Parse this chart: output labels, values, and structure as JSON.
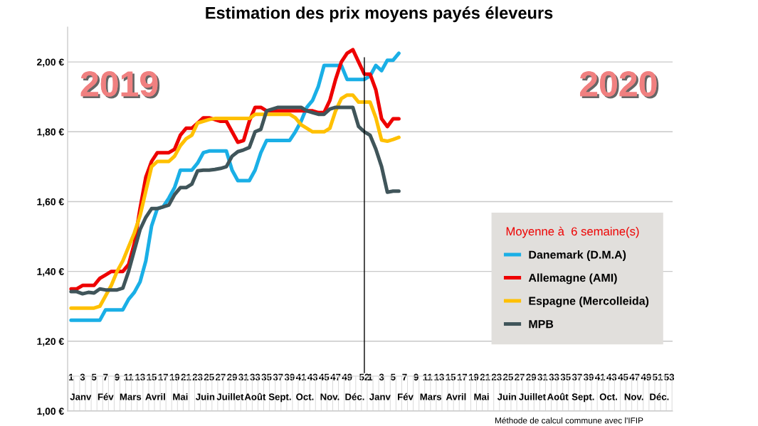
{
  "chart_data": {
    "type": "line",
    "title": "Estimation des prix moyens payés éleveurs",
    "categories": [
      "1",
      null,
      "3",
      null,
      "5",
      null,
      "7",
      null,
      "9",
      null,
      "11",
      null,
      "13",
      null,
      "15",
      null,
      "17",
      null,
      "19",
      null,
      "21",
      null,
      "23",
      null,
      "25",
      null,
      "27",
      null,
      "29",
      null,
      "31",
      null,
      "33",
      null,
      "35",
      null,
      "37",
      null,
      "39",
      null,
      "41",
      null,
      "43",
      null,
      "45",
      null,
      "47",
      null,
      "49",
      null,
      null,
      "52",
      "1",
      null,
      "3",
      null,
      "5",
      null,
      "7",
      null,
      "9",
      null,
      "11",
      null,
      "13",
      null,
      "15",
      null,
      "17",
      null,
      "19",
      null,
      "21",
      null,
      "23",
      null,
      "25",
      null,
      "27",
      null,
      "29",
      null,
      "31",
      null,
      "33",
      null,
      "35",
      null,
      "37",
      null,
      "39",
      null,
      "41",
      null,
      "43",
      null,
      "45",
      null,
      "47",
      null,
      "49",
      null,
      "51",
      null,
      "53"
    ],
    "series": [
      {
        "name": "Danemark (D.M.A)",
        "color": "#1aafe6",
        "values": [
          1.26,
          1.26,
          1.26,
          1.26,
          1.26,
          1.26,
          1.29,
          1.29,
          1.29,
          1.29,
          1.32,
          1.34,
          1.37,
          1.43,
          1.53,
          1.58,
          1.585,
          1.61,
          1.64,
          1.69,
          1.69,
          1.69,
          1.71,
          1.74,
          1.745,
          1.745,
          1.745,
          1.745,
          1.69,
          1.66,
          1.66,
          1.66,
          1.69,
          1.74,
          1.775,
          1.775,
          1.775,
          1.775,
          1.775,
          1.8,
          1.83,
          1.87,
          1.89,
          1.93,
          1.99,
          1.99,
          1.99,
          1.99,
          1.95,
          1.95,
          1.95,
          1.95,
          1.96,
          1.99,
          1.975,
          2.005,
          2.005,
          2.025,
          null,
          null,
          null,
          null,
          null,
          null,
          null,
          null,
          null,
          null,
          null,
          null,
          null,
          null,
          null,
          null,
          null,
          null,
          null,
          null,
          null,
          null,
          null,
          null,
          null,
          null,
          null,
          null,
          null,
          null,
          null,
          null,
          null,
          null,
          null,
          null,
          null,
          null,
          null,
          null,
          null,
          null,
          null,
          null,
          null,
          null,
          null
        ]
      },
      {
        "name": "Allemagne (AMI)",
        "color": "#ee0000",
        "values": [
          1.35,
          1.35,
          1.36,
          1.36,
          1.36,
          1.38,
          1.39,
          1.4,
          1.4,
          1.4,
          1.42,
          1.48,
          1.58,
          1.67,
          1.715,
          1.74,
          1.74,
          1.74,
          1.75,
          1.79,
          1.81,
          1.81,
          1.825,
          1.84,
          1.84,
          1.835,
          1.83,
          1.83,
          1.8,
          1.77,
          1.775,
          1.83,
          1.87,
          1.87,
          1.86,
          1.86,
          1.86,
          1.86,
          1.86,
          1.86,
          1.86,
          1.86,
          1.86,
          1.855,
          1.855,
          1.89,
          1.95,
          2.0,
          2.025,
          2.035,
          2.0,
          1.965,
          1.965,
          1.92,
          1.837,
          1.815,
          1.837,
          1.837,
          null,
          null,
          null,
          null,
          null,
          null,
          null,
          null,
          null,
          null,
          null,
          null,
          null,
          null,
          null,
          null,
          null,
          null,
          null,
          null,
          null,
          null,
          null,
          null,
          null,
          null,
          null,
          null,
          null,
          null,
          null,
          null,
          null,
          null,
          null,
          null,
          null,
          null,
          null,
          null,
          null,
          null,
          null,
          null,
          null,
          null,
          null
        ]
      },
      {
        "name": "Espagne (Mercolleida)",
        "color": "#ffc000",
        "values": [
          1.295,
          1.295,
          1.295,
          1.295,
          1.295,
          1.3,
          1.33,
          1.36,
          1.4,
          1.43,
          1.47,
          1.51,
          1.56,
          1.63,
          1.7,
          1.715,
          1.715,
          1.715,
          1.73,
          1.76,
          1.78,
          1.79,
          1.825,
          1.83,
          1.835,
          1.838,
          1.838,
          1.838,
          1.838,
          1.838,
          1.838,
          1.838,
          1.85,
          1.85,
          1.85,
          1.85,
          1.85,
          1.85,
          1.85,
          1.84,
          1.82,
          1.81,
          1.8,
          1.8,
          1.8,
          1.81,
          1.86,
          1.895,
          1.905,
          1.905,
          1.885,
          1.885,
          1.885,
          1.84,
          1.776,
          1.773,
          1.778,
          1.784,
          null,
          null,
          null,
          null,
          null,
          null,
          null,
          null,
          null,
          null,
          null,
          null,
          null,
          null,
          null,
          null,
          null,
          null,
          null,
          null,
          null,
          null,
          null,
          null,
          null,
          null,
          null,
          null,
          null,
          null,
          null,
          null,
          null,
          null,
          null,
          null,
          null,
          null,
          null,
          null,
          null,
          null,
          null,
          null,
          null,
          null,
          null
        ]
      },
      {
        "name": "MPB",
        "color": "#40555a",
        "values": [
          1.342,
          1.342,
          1.336,
          1.34,
          1.338,
          1.35,
          1.347,
          1.347,
          1.347,
          1.352,
          1.4,
          1.46,
          1.52,
          1.555,
          1.58,
          1.58,
          1.585,
          1.59,
          1.62,
          1.64,
          1.64,
          1.65,
          1.688,
          1.69,
          1.69,
          1.692,
          1.695,
          1.7,
          1.73,
          1.743,
          1.748,
          1.755,
          1.8,
          1.807,
          1.86,
          1.865,
          1.87,
          1.87,
          1.87,
          1.87,
          1.87,
          1.86,
          1.855,
          1.85,
          1.85,
          1.865,
          1.87,
          1.87,
          1.87,
          1.87,
          1.815,
          1.8,
          1.79,
          1.75,
          1.7,
          1.627,
          1.63,
          1.63,
          null,
          null,
          null,
          null,
          null,
          null,
          null,
          null,
          null,
          null,
          null,
          null,
          null,
          null,
          null,
          null,
          null,
          null,
          null,
          null,
          null,
          null,
          null,
          null,
          null,
          null,
          null,
          null,
          null,
          null,
          null,
          null,
          null,
          null,
          null,
          null,
          null,
          null,
          null,
          null,
          null,
          null,
          null,
          null,
          null,
          null,
          null
        ]
      }
    ],
    "ylim": [
      1.0,
      2.1
    ],
    "yticks": [
      {
        "value": 1.0,
        "label": "1,00 €"
      },
      {
        "value": 1.2,
        "label": "1,20 €"
      },
      {
        "value": 1.4,
        "label": "1,40 €"
      },
      {
        "value": 1.6,
        "label": "1,60 €"
      },
      {
        "value": 1.8,
        "label": "1,80 €"
      },
      {
        "value": 2.0,
        "label": "2,00 €"
      }
    ],
    "grid": "y",
    "legend": "bottom right",
    "legend_title": "Moyenne à  6 semaine(s)",
    "ref_lines": [
      {
        "axis": "x",
        "value": "52",
        "color": "#000000"
      }
    ],
    "annotations": [
      "2019",
      "2020",
      "Méthode de calcul commune avec l'IFIP",
      "Janv",
      "Fév",
      "Mars",
      "Avril",
      "Mai",
      "Juin",
      "Juillet",
      "Août",
      "Sept.",
      "Oct.",
      "Nov.",
      "Déc.",
      "Janv",
      "Fév",
      "Mars",
      "Avril",
      "Mai",
      "Juin",
      "Juillet",
      "Août",
      "Sept.",
      "Oct.",
      "Nov.",
      "Déc."
    ]
  }
}
